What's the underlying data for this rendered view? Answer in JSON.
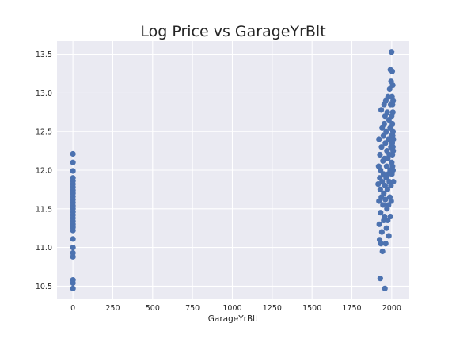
{
  "chart_data": {
    "type": "scatter",
    "title": "Log Price vs GarageYrBlt",
    "xlabel": "GarageYrBlt",
    "ylabel": "",
    "xlim": [
      -100,
      2110
    ],
    "ylim": [
      10.33,
      13.67
    ],
    "x_ticks": [
      0,
      250,
      500,
      750,
      1000,
      1250,
      1500,
      1750,
      2000
    ],
    "x_tick_labels": [
      "0",
      "250",
      "500",
      "750",
      "1000",
      "1250",
      "1500",
      "1750",
      "2000"
    ],
    "y_ticks": [
      10.5,
      11.0,
      11.5,
      12.0,
      12.5,
      13.0,
      13.5
    ],
    "y_tick_labels": [
      "10.5",
      "11.0",
      "11.5",
      "12.0",
      "12.5",
      "13.0",
      "13.5"
    ],
    "grid": true,
    "marker_color": "#4c72b0",
    "background_color": "#eaeaf2",
    "points": [
      {
        "x": 0,
        "y": 12.21
      },
      {
        "x": 0,
        "y": 12.1
      },
      {
        "x": 0,
        "y": 11.99
      },
      {
        "x": 0,
        "y": 11.9
      },
      {
        "x": 0,
        "y": 11.86
      },
      {
        "x": 0,
        "y": 11.82
      },
      {
        "x": 0,
        "y": 11.78
      },
      {
        "x": 0,
        "y": 11.74
      },
      {
        "x": 0,
        "y": 11.7
      },
      {
        "x": 0,
        "y": 11.66
      },
      {
        "x": 0,
        "y": 11.62
      },
      {
        "x": 0,
        "y": 11.58
      },
      {
        "x": 0,
        "y": 11.54
      },
      {
        "x": 0,
        "y": 11.5
      },
      {
        "x": 0,
        "y": 11.46
      },
      {
        "x": 0,
        "y": 11.42
      },
      {
        "x": 0,
        "y": 11.38
      },
      {
        "x": 0,
        "y": 11.34
      },
      {
        "x": 0,
        "y": 11.3
      },
      {
        "x": 0,
        "y": 11.26
      },
      {
        "x": 0,
        "y": 11.22
      },
      {
        "x": 0,
        "y": 11.11
      },
      {
        "x": 0,
        "y": 11.0
      },
      {
        "x": 0,
        "y": 10.93
      },
      {
        "x": 0,
        "y": 10.88
      },
      {
        "x": 0,
        "y": 10.58
      },
      {
        "x": 0,
        "y": 10.54
      },
      {
        "x": 0,
        "y": 10.47
      },
      {
        "x": 1915,
        "y": 11.82
      },
      {
        "x": 1918,
        "y": 12.05
      },
      {
        "x": 1920,
        "y": 11.6
      },
      {
        "x": 1920,
        "y": 12.4
      },
      {
        "x": 1922,
        "y": 11.3
      },
      {
        "x": 1924,
        "y": 11.1
      },
      {
        "x": 1925,
        "y": 11.9
      },
      {
        "x": 1926,
        "y": 12.2
      },
      {
        "x": 1928,
        "y": 10.6
      },
      {
        "x": 1928,
        "y": 11.75
      },
      {
        "x": 1930,
        "y": 11.45
      },
      {
        "x": 1930,
        "y": 12.0
      },
      {
        "x": 1932,
        "y": 11.05
      },
      {
        "x": 1934,
        "y": 12.78
      },
      {
        "x": 1935,
        "y": 11.65
      },
      {
        "x": 1936,
        "y": 12.3
      },
      {
        "x": 1938,
        "y": 11.2
      },
      {
        "x": 1940,
        "y": 11.85
      },
      {
        "x": 1940,
        "y": 12.55
      },
      {
        "x": 1942,
        "y": 10.95
      },
      {
        "x": 1945,
        "y": 11.55
      },
      {
        "x": 1945,
        "y": 12.12
      },
      {
        "x": 1948,
        "y": 11.95
      },
      {
        "x": 1948,
        "y": 12.45
      },
      {
        "x": 1950,
        "y": 11.35
      },
      {
        "x": 1950,
        "y": 11.7
      },
      {
        "x": 1952,
        "y": 12.85
      },
      {
        "x": 1953,
        "y": 12.6
      },
      {
        "x": 1955,
        "y": 11.4
      },
      {
        "x": 1955,
        "y": 12.15
      },
      {
        "x": 1957,
        "y": 10.47
      },
      {
        "x": 1958,
        "y": 12.7
      },
      {
        "x": 1958,
        "y": 11.8
      },
      {
        "x": 1960,
        "y": 11.62
      },
      {
        "x": 1960,
        "y": 12.35
      },
      {
        "x": 1962,
        "y": 11.05
      },
      {
        "x": 1963,
        "y": 12.9
      },
      {
        "x": 1965,
        "y": 11.9
      },
      {
        "x": 1965,
        "y": 12.5
      },
      {
        "x": 1967,
        "y": 11.25
      },
      {
        "x": 1968,
        "y": 12.05
      },
      {
        "x": 1970,
        "y": 11.5
      },
      {
        "x": 1970,
        "y": 12.25
      },
      {
        "x": 1972,
        "y": 12.75
      },
      {
        "x": 1973,
        "y": 11.75
      },
      {
        "x": 1975,
        "y": 11.35
      },
      {
        "x": 1975,
        "y": 12.15
      },
      {
        "x": 1977,
        "y": 12.95
      },
      {
        "x": 1978,
        "y": 11.95
      },
      {
        "x": 1980,
        "y": 11.55
      },
      {
        "x": 1980,
        "y": 12.4
      },
      {
        "x": 1982,
        "y": 11.15
      },
      {
        "x": 1983,
        "y": 12.65
      },
      {
        "x": 1985,
        "y": 11.85
      },
      {
        "x": 1985,
        "y": 12.2
      },
      {
        "x": 1987,
        "y": 13.05
      },
      {
        "x": 1988,
        "y": 11.65
      },
      {
        "x": 1990,
        "y": 12.0
      },
      {
        "x": 1990,
        "y": 12.55
      },
      {
        "x": 1992,
        "y": 11.4
      },
      {
        "x": 1992,
        "y": 13.3
      },
      {
        "x": 1993,
        "y": 12.85
      },
      {
        "x": 1995,
        "y": 11.8
      },
      {
        "x": 1995,
        "y": 12.3
      },
      {
        "x": 1996,
        "y": 13.15
      },
      {
        "x": 1997,
        "y": 11.6
      },
      {
        "x": 1998,
        "y": 12.45
      },
      {
        "x": 1999,
        "y": 13.53
      },
      {
        "x": 2000,
        "y": 12.1
      },
      {
        "x": 2000,
        "y": 12.7
      },
      {
        "x": 2001,
        "y": 11.95
      },
      {
        "x": 2002,
        "y": 12.95
      },
      {
        "x": 2003,
        "y": 12.35
      },
      {
        "x": 2003,
        "y": 13.28
      },
      {
        "x": 2004,
        "y": 12.2
      },
      {
        "x": 2004,
        "y": 12.6
      },
      {
        "x": 2005,
        "y": 12.85
      },
      {
        "x": 2005,
        "y": 12.05
      },
      {
        "x": 2006,
        "y": 12.45
      },
      {
        "x": 2006,
        "y": 13.1
      },
      {
        "x": 2007,
        "y": 12.3
      },
      {
        "x": 2007,
        "y": 12.75
      },
      {
        "x": 2008,
        "y": 12.0
      },
      {
        "x": 2008,
        "y": 12.5
      },
      {
        "x": 2009,
        "y": 12.25
      },
      {
        "x": 2009,
        "y": 12.9
      },
      {
        "x": 2010,
        "y": 12.4
      },
      {
        "x": 2010,
        "y": 11.85
      }
    ]
  }
}
